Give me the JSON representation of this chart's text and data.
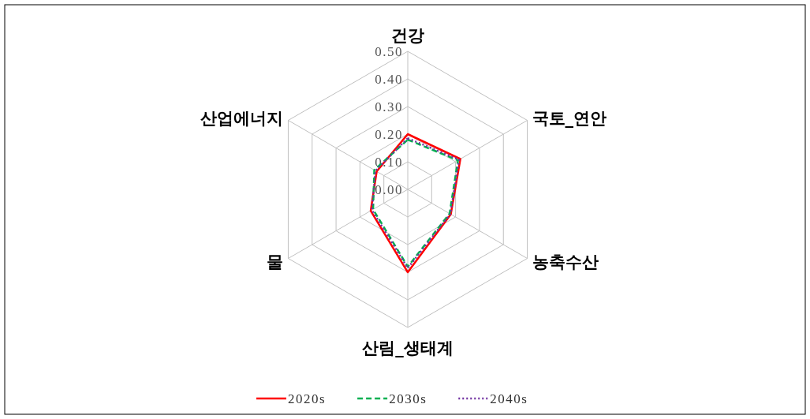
{
  "chart_data": {
    "type": "radar",
    "categories": [
      "건강",
      "국토_연안",
      "농축수산",
      "산림_생태계",
      "물",
      "산업에너지"
    ],
    "ylim": [
      0,
      0.5
    ],
    "yticks": [
      {
        "value": 0,
        "label": "0.00"
      },
      {
        "value": 0.1,
        "label": "0.10"
      },
      {
        "value": 0.2,
        "label": "0.20"
      },
      {
        "value": 0.3,
        "label": "0.30"
      },
      {
        "value": 0.4,
        "label": "0.40"
      },
      {
        "value": 0.5,
        "label": "0.50"
      }
    ],
    "grid": true,
    "legend": "bottom",
    "marker": "none",
    "series": [
      {
        "name": "2020s",
        "color": "#ff0000",
        "line_style": "solid",
        "values": [
          0.2,
          0.22,
          0.18,
          0.3,
          0.155,
          0.13
        ]
      },
      {
        "name": "2030s",
        "color": "#00b050",
        "line_style": "dashed",
        "values": [
          0.18,
          0.21,
          0.175,
          0.28,
          0.145,
          0.14
        ]
      },
      {
        "name": "2040s",
        "color": "#7030a0",
        "line_style": "dotted",
        "values": [
          0.185,
          0.215,
          0.178,
          0.285,
          0.15,
          0.135
        ]
      }
    ]
  }
}
